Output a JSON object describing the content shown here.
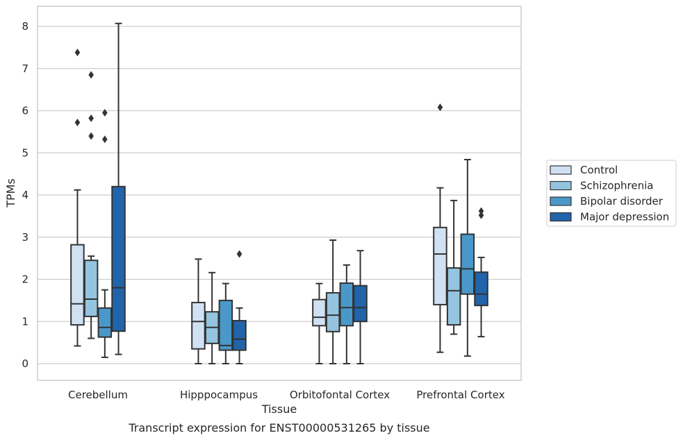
{
  "chart_data": {
    "type": "box",
    "title": "",
    "caption": "Transcript expression for ENST00000531265 by tissue",
    "xlabel": "Tissue",
    "ylabel": "TPMs",
    "ylim": [
      -0.4,
      8.5
    ],
    "yticks": [
      "0",
      "1",
      "2",
      "3",
      "4",
      "5",
      "6",
      "7",
      "8"
    ],
    "grid": true,
    "legend_position": "right",
    "categories": [
      "Cerebellum",
      "Hipppocampus",
      "Orbitofontal Cortex",
      "Prefrontal Cortex"
    ],
    "series": [
      {
        "name": "Control",
        "color": "#d0e1f2",
        "boxes": [
          {
            "whislo": 0.42,
            "q1": 0.92,
            "med": 1.42,
            "q3": 2.82,
            "whishi": 4.12,
            "fliers": [
              5.72,
              7.38
            ]
          },
          {
            "whislo": 0.0,
            "q1": 0.35,
            "med": 1.0,
            "q3": 1.45,
            "whishi": 2.48,
            "fliers": []
          },
          {
            "whislo": 0.0,
            "q1": 0.9,
            "med": 1.1,
            "q3": 1.52,
            "whishi": 1.9,
            "fliers": []
          },
          {
            "whislo": 0.27,
            "q1": 1.4,
            "med": 2.6,
            "q3": 3.23,
            "whishi": 4.17,
            "fliers": [
              6.08
            ]
          }
        ]
      },
      {
        "name": "Schizophrenia",
        "color": "#94c4df",
        "boxes": [
          {
            "whislo": 0.6,
            "q1": 1.12,
            "med": 1.53,
            "q3": 2.45,
            "whishi": 2.55,
            "fliers": [
              5.4,
              5.82,
              6.85
            ]
          },
          {
            "whislo": 0.0,
            "q1": 0.48,
            "med": 0.86,
            "q3": 1.23,
            "whishi": 2.16,
            "fliers": []
          },
          {
            "whislo": 0.0,
            "q1": 0.76,
            "med": 1.15,
            "q3": 1.68,
            "whishi": 2.93,
            "fliers": []
          },
          {
            "whislo": 0.7,
            "q1": 0.92,
            "med": 1.73,
            "q3": 2.27,
            "whishi": 3.87,
            "fliers": []
          }
        ]
      },
      {
        "name": "Bipolar disorder",
        "color": "#4a98c9",
        "boxes": [
          {
            "whislo": 0.15,
            "q1": 0.63,
            "med": 0.86,
            "q3": 1.32,
            "whishi": 1.75,
            "fliers": [
              5.32,
              5.95
            ]
          },
          {
            "whislo": 0.0,
            "q1": 0.32,
            "med": 0.43,
            "q3": 1.5,
            "whishi": 1.9,
            "fliers": []
          },
          {
            "whislo": 0.0,
            "q1": 0.9,
            "med": 1.33,
            "q3": 1.91,
            "whishi": 2.34,
            "fliers": []
          },
          {
            "whislo": 0.18,
            "q1": 1.65,
            "med": 2.25,
            "q3": 3.07,
            "whishi": 4.84,
            "fliers": []
          }
        ]
      },
      {
        "name": "Major depression",
        "color": "#2264a9",
        "boxes": [
          {
            "whislo": 0.22,
            "q1": 0.77,
            "med": 1.8,
            "q3": 4.2,
            "whishi": 8.07,
            "fliers": []
          },
          {
            "whislo": 0.0,
            "q1": 0.32,
            "med": 0.58,
            "q3": 1.02,
            "whishi": 1.32,
            "fliers": [
              2.6
            ]
          },
          {
            "whislo": 0.0,
            "q1": 1.0,
            "med": 1.33,
            "q3": 1.85,
            "whishi": 2.68,
            "fliers": []
          },
          {
            "whislo": 0.64,
            "q1": 1.38,
            "med": 1.65,
            "q3": 2.17,
            "whishi": 2.52,
            "fliers": [
              3.52,
              3.62
            ]
          }
        ]
      }
    ]
  },
  "style": {
    "box_edge": "#333333",
    "grid_color": "#cccccc",
    "frame_color": "#cccccc",
    "text_color": "#262626"
  }
}
